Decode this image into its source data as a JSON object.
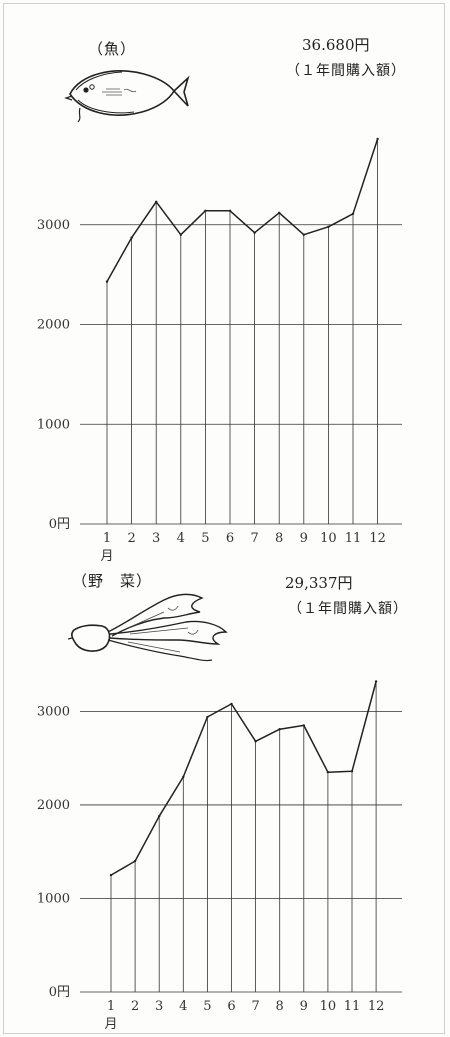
{
  "chart_data": [
    {
      "type": "line",
      "heading": "（魚）",
      "total": "36.680円",
      "annual_note": "（１年間購入額）",
      "categories": [
        "1",
        "2",
        "3",
        "4",
        "5",
        "6",
        "7",
        "8",
        "9",
        "10",
        "11",
        "12"
      ],
      "x_unit": "月",
      "y_ticks": [
        "0円",
        "1000",
        "2000",
        "3000"
      ],
      "ylim": [
        0,
        3900
      ],
      "grid": true,
      "values": [
        2430,
        2870,
        3230,
        2900,
        3140,
        3140,
        2920,
        3120,
        2900,
        2980,
        3110,
        3860
      ]
    },
    {
      "type": "line",
      "heading": "（野　菜）",
      "total": "29,337円",
      "annual_note": "（１年間購入額）",
      "categories": [
        "1",
        "2",
        "3",
        "4",
        "5",
        "6",
        "7",
        "8",
        "9",
        "10",
        "11",
        "12"
      ],
      "x_unit": "月",
      "y_ticks": [
        "0円",
        "1000",
        "2000",
        "3000"
      ],
      "ylim": [
        0,
        3400
      ],
      "grid": true,
      "values": [
        1250,
        1400,
        1880,
        2300,
        2940,
        3080,
        2680,
        2810,
        2850,
        2350,
        2360,
        3320
      ]
    }
  ],
  "illustrations": {
    "fish": "flatfish-illustration",
    "vegetable": "radish-illustration"
  }
}
